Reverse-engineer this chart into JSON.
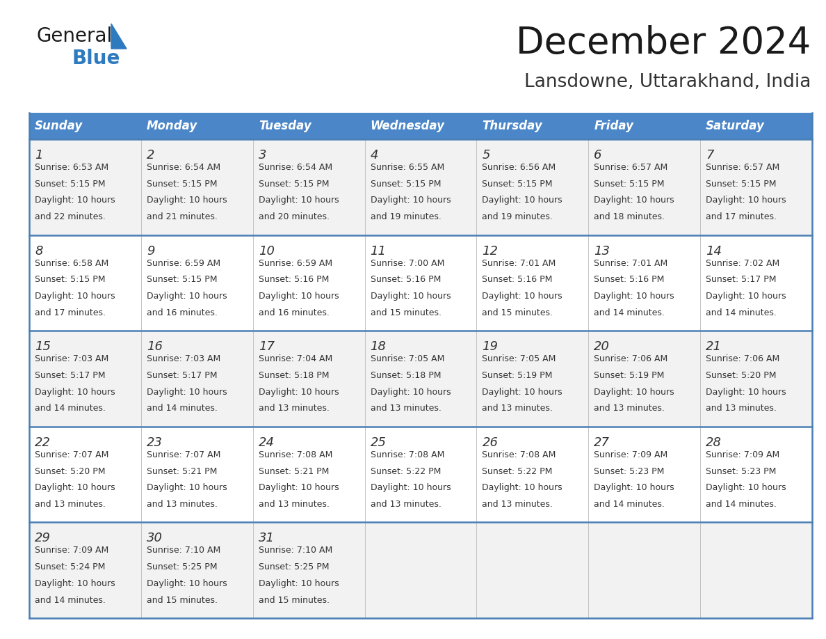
{
  "title": "December 2024",
  "subtitle": "Lansdowne, Uttarakhand, India",
  "days_of_week": [
    "Sunday",
    "Monday",
    "Tuesday",
    "Wednesday",
    "Thursday",
    "Friday",
    "Saturday"
  ],
  "header_bg": "#4a86c8",
  "header_text": "#ffffff",
  "cell_bg": "#f2f2f2",
  "cell_bg_alt": "#ffffff",
  "border_color": "#4a7fb5",
  "grid_color": "#c0c0c0",
  "day_num_color": "#333333",
  "text_color": "#333333",
  "title_color": "#1a1a1a",
  "subtitle_color": "#333333",
  "logo_black": "#1a1a1a",
  "logo_blue": "#2e7abf",
  "weeks": [
    [
      {
        "day": 1,
        "sunrise": "6:53 AM",
        "sunset": "5:15 PM",
        "daylight_hours": 10,
        "daylight_minutes": 22
      },
      {
        "day": 2,
        "sunrise": "6:54 AM",
        "sunset": "5:15 PM",
        "daylight_hours": 10,
        "daylight_minutes": 21
      },
      {
        "day": 3,
        "sunrise": "6:54 AM",
        "sunset": "5:15 PM",
        "daylight_hours": 10,
        "daylight_minutes": 20
      },
      {
        "day": 4,
        "sunrise": "6:55 AM",
        "sunset": "5:15 PM",
        "daylight_hours": 10,
        "daylight_minutes": 19
      },
      {
        "day": 5,
        "sunrise": "6:56 AM",
        "sunset": "5:15 PM",
        "daylight_hours": 10,
        "daylight_minutes": 19
      },
      {
        "day": 6,
        "sunrise": "6:57 AM",
        "sunset": "5:15 PM",
        "daylight_hours": 10,
        "daylight_minutes": 18
      },
      {
        "day": 7,
        "sunrise": "6:57 AM",
        "sunset": "5:15 PM",
        "daylight_hours": 10,
        "daylight_minutes": 17
      }
    ],
    [
      {
        "day": 8,
        "sunrise": "6:58 AM",
        "sunset": "5:15 PM",
        "daylight_hours": 10,
        "daylight_minutes": 17
      },
      {
        "day": 9,
        "sunrise": "6:59 AM",
        "sunset": "5:15 PM",
        "daylight_hours": 10,
        "daylight_minutes": 16
      },
      {
        "day": 10,
        "sunrise": "6:59 AM",
        "sunset": "5:16 PM",
        "daylight_hours": 10,
        "daylight_minutes": 16
      },
      {
        "day": 11,
        "sunrise": "7:00 AM",
        "sunset": "5:16 PM",
        "daylight_hours": 10,
        "daylight_minutes": 15
      },
      {
        "day": 12,
        "sunrise": "7:01 AM",
        "sunset": "5:16 PM",
        "daylight_hours": 10,
        "daylight_minutes": 15
      },
      {
        "day": 13,
        "sunrise": "7:01 AM",
        "sunset": "5:16 PM",
        "daylight_hours": 10,
        "daylight_minutes": 14
      },
      {
        "day": 14,
        "sunrise": "7:02 AM",
        "sunset": "5:17 PM",
        "daylight_hours": 10,
        "daylight_minutes": 14
      }
    ],
    [
      {
        "day": 15,
        "sunrise": "7:03 AM",
        "sunset": "5:17 PM",
        "daylight_hours": 10,
        "daylight_minutes": 14
      },
      {
        "day": 16,
        "sunrise": "7:03 AM",
        "sunset": "5:17 PM",
        "daylight_hours": 10,
        "daylight_minutes": 14
      },
      {
        "day": 17,
        "sunrise": "7:04 AM",
        "sunset": "5:18 PM",
        "daylight_hours": 10,
        "daylight_minutes": 13
      },
      {
        "day": 18,
        "sunrise": "7:05 AM",
        "sunset": "5:18 PM",
        "daylight_hours": 10,
        "daylight_minutes": 13
      },
      {
        "day": 19,
        "sunrise": "7:05 AM",
        "sunset": "5:19 PM",
        "daylight_hours": 10,
        "daylight_minutes": 13
      },
      {
        "day": 20,
        "sunrise": "7:06 AM",
        "sunset": "5:19 PM",
        "daylight_hours": 10,
        "daylight_minutes": 13
      },
      {
        "day": 21,
        "sunrise": "7:06 AM",
        "sunset": "5:20 PM",
        "daylight_hours": 10,
        "daylight_minutes": 13
      }
    ],
    [
      {
        "day": 22,
        "sunrise": "7:07 AM",
        "sunset": "5:20 PM",
        "daylight_hours": 10,
        "daylight_minutes": 13
      },
      {
        "day": 23,
        "sunrise": "7:07 AM",
        "sunset": "5:21 PM",
        "daylight_hours": 10,
        "daylight_minutes": 13
      },
      {
        "day": 24,
        "sunrise": "7:08 AM",
        "sunset": "5:21 PM",
        "daylight_hours": 10,
        "daylight_minutes": 13
      },
      {
        "day": 25,
        "sunrise": "7:08 AM",
        "sunset": "5:22 PM",
        "daylight_hours": 10,
        "daylight_minutes": 13
      },
      {
        "day": 26,
        "sunrise": "7:08 AM",
        "sunset": "5:22 PM",
        "daylight_hours": 10,
        "daylight_minutes": 13
      },
      {
        "day": 27,
        "sunrise": "7:09 AM",
        "sunset": "5:23 PM",
        "daylight_hours": 10,
        "daylight_minutes": 14
      },
      {
        "day": 28,
        "sunrise": "7:09 AM",
        "sunset": "5:23 PM",
        "daylight_hours": 10,
        "daylight_minutes": 14
      }
    ],
    [
      {
        "day": 29,
        "sunrise": "7:09 AM",
        "sunset": "5:24 PM",
        "daylight_hours": 10,
        "daylight_minutes": 14
      },
      {
        "day": 30,
        "sunrise": "7:10 AM",
        "sunset": "5:25 PM",
        "daylight_hours": 10,
        "daylight_minutes": 15
      },
      {
        "day": 31,
        "sunrise": "7:10 AM",
        "sunset": "5:25 PM",
        "daylight_hours": 10,
        "daylight_minutes": 15
      },
      null,
      null,
      null,
      null
    ]
  ]
}
